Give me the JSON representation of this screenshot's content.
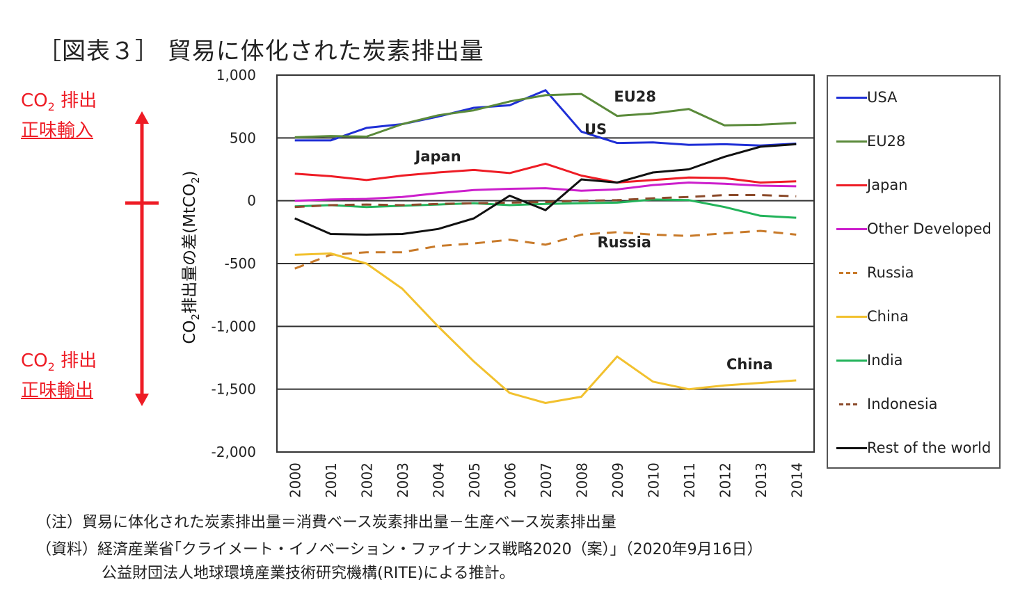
{
  "title": "［図表３］ 貿易に体化された炭素排出量",
  "side": {
    "top_line1": "CO",
    "top_sub": "2",
    "top_line1b": " 排出",
    "top_line2": "正味輸入",
    "bottom_line1": "CO",
    "bottom_sub": "2",
    "bottom_line1b": " 排出",
    "bottom_line2": "正味輸出",
    "arrow_color": "#ee1c25"
  },
  "notes": {
    "note1": "（注）貿易に体化された炭素排出量＝消費ベース炭素排出量－生産ベース炭素排出量",
    "note2": "（資料）経済産業省｢クライメート・イノベーション・ファイナンス戦略2020（案）」（2020年9月16日）",
    "note3": "公益財団法人地球環境産業技術研究機構(RITE)による推計。"
  },
  "chart_data": {
    "type": "line",
    "title": "",
    "xlabel": "",
    "ylabel": "CO2排出量の差(MtCO2)",
    "ylim": [
      -2000,
      1000
    ],
    "yticks": [
      1000,
      500,
      0,
      -500,
      -1000,
      -1500,
      -2000
    ],
    "ytick_labels": [
      "1,000",
      "500",
      "0",
      "-500",
      "-1,000",
      "-1,500",
      "-2,000"
    ],
    "categories": [
      "2000",
      "2001",
      "2002",
      "2003",
      "2004",
      "2005",
      "2006",
      "2007",
      "2008",
      "2009",
      "2010",
      "2011",
      "2012",
      "2013",
      "2014"
    ],
    "grid": true,
    "legend_position": "right",
    "series": [
      {
        "name": "USA",
        "color": "#1f2fd6",
        "dash": false,
        "values": [
          480,
          480,
          580,
          610,
          670,
          740,
          760,
          880,
          550,
          460,
          465,
          445,
          450,
          440,
          455
        ]
      },
      {
        "name": "EU28",
        "color": "#5a8a3a",
        "dash": false,
        "values": [
          505,
          515,
          510,
          610,
          680,
          720,
          790,
          840,
          850,
          675,
          695,
          730,
          600,
          605,
          620
        ]
      },
      {
        "name": "Japan",
        "color": "#ee1c25",
        "dash": false,
        "values": [
          215,
          195,
          165,
          200,
          225,
          245,
          220,
          295,
          200,
          145,
          165,
          185,
          180,
          145,
          155
        ]
      },
      {
        "name": "Other Developed",
        "color": "#cc1fcc",
        "dash": false,
        "values": [
          0,
          10,
          15,
          30,
          60,
          85,
          95,
          100,
          80,
          90,
          125,
          145,
          135,
          120,
          115
        ]
      },
      {
        "name": "Russia",
        "color": "#c87a2a",
        "dash": true,
        "values": [
          -540,
          -430,
          -410,
          -410,
          -360,
          -340,
          -310,
          -350,
          -270,
          -250,
          -270,
          -280,
          -260,
          -240,
          -270
        ]
      },
      {
        "name": "China",
        "color": "#f2c12e",
        "dash": false,
        "values": [
          -430,
          -420,
          -500,
          -700,
          -1000,
          -1280,
          -1530,
          -1610,
          -1560,
          -1240,
          -1440,
          -1500,
          -1470,
          -1450,
          -1430
        ]
      },
      {
        "name": "India",
        "color": "#22b35a",
        "dash": false,
        "values": [
          -45,
          -35,
          -50,
          -40,
          -30,
          -20,
          -35,
          -25,
          -20,
          -15,
          10,
          5,
          -50,
          -120,
          -135
        ]
      },
      {
        "name": "Indonesia",
        "color": "#8b4a2a",
        "dash": true,
        "values": [
          -50,
          -35,
          -30,
          -35,
          -25,
          -20,
          -15,
          -10,
          0,
          5,
          20,
          30,
          45,
          45,
          35
        ]
      },
      {
        "name": "Rest of the world",
        "color": "#111111",
        "dash": false,
        "values": [
          -140,
          -265,
          -270,
          -265,
          -225,
          -140,
          40,
          -75,
          170,
          145,
          225,
          250,
          350,
          430,
          450
        ]
      }
    ],
    "annotations": [
      {
        "text": "EU28",
        "x": "2009.5",
        "y": 790
      },
      {
        "text": "US",
        "x": "2008.4",
        "y": 530
      },
      {
        "text": "Japan",
        "x": "2004",
        "y": 315
      },
      {
        "text": "Russia",
        "x": "2009.2",
        "y": -370
      },
      {
        "text": "China",
        "x": "2012.7",
        "y": -1340
      }
    ]
  }
}
